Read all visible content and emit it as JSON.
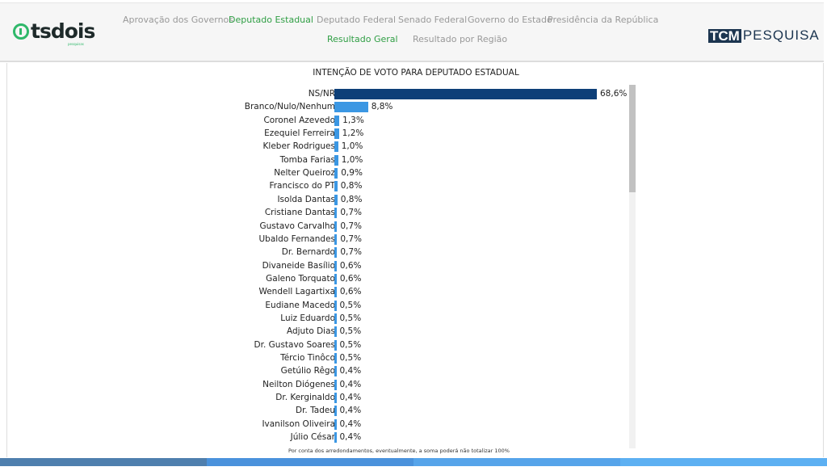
{
  "header": {
    "logo": {
      "text": "tsdois",
      "sub": "pesquisas"
    },
    "nav_top": [
      {
        "label": "Aprovação dos Governos",
        "active": false
      },
      {
        "label": "Deputado Estadual",
        "active": true
      },
      {
        "label": "Deputado Federal",
        "active": false
      },
      {
        "label": "Senado Federal",
        "active": false
      },
      {
        "label": "Governo do Estado",
        "active": false
      },
      {
        "label": "Presidência da República",
        "active": false
      }
    ],
    "nav_sub": [
      {
        "label": "Resultado Geral",
        "active": true
      },
      {
        "label": "Resultado por Região",
        "active": false
      }
    ],
    "brand": {
      "box": "TCM",
      "text": "PESQUISA"
    }
  },
  "chart_data": {
    "type": "bar",
    "orientation": "horizontal",
    "title": "INTENÇÃO DE VOTO PARA DEPUTADO ESTADUAL",
    "categories": [
      "NS/NR",
      "Branco/Nulo/Nenhum",
      "Coronel Azevedo",
      "Ezequiel Ferreira",
      "Kleber Rodrigues",
      "Tomba Farias",
      "Nelter Queiroz",
      "Francisco do PT",
      "Isolda Dantas",
      "Cristiane Dantas",
      "Gustavo Carvalho",
      "Ubaldo Fernandes",
      "Dr. Bernardo",
      "Divaneide Basílio",
      "Galeno Torquato",
      "Wendell Lagartixa",
      "Eudiane Macedo",
      "Luiz Eduardo",
      "Adjuto Dias",
      "Dr. Gustavo Soares",
      "Tércio Tinôco",
      "Getúlio Rêgo",
      "Neilton Diógenes",
      "Dr. Kerginaldo",
      "Dr. Tadeu",
      "Ivanilson Oliveira",
      "Júlio César"
    ],
    "values": [
      68.6,
      8.8,
      1.3,
      1.2,
      1.0,
      1.0,
      0.9,
      0.8,
      0.8,
      0.7,
      0.7,
      0.7,
      0.7,
      0.6,
      0.6,
      0.6,
      0.5,
      0.5,
      0.5,
      0.5,
      0.5,
      0.4,
      0.4,
      0.4,
      0.4,
      0.4,
      0.4
    ],
    "labels": [
      "68,6%",
      "8,8%",
      "1,3%",
      "1,2%",
      "1,0%",
      "1,0%",
      "0,9%",
      "0,8%",
      "0,8%",
      "0,7%",
      "0,7%",
      "0,7%",
      "0,7%",
      "0,6%",
      "0,6%",
      "0,6%",
      "0,5%",
      "0,5%",
      "0,5%",
      "0,5%",
      "0,5%",
      "0,4%",
      "0,4%",
      "0,4%",
      "0,4%",
      "0,4%",
      "0,4%"
    ],
    "colors": {
      "highlight": "#0d3f78",
      "default": "#3b97e3"
    },
    "note": "Por conta dos arredondamentos, eventualmente, a soma poderá não totalizar 100%"
  },
  "bottom_colors": [
    "#4f7fae",
    "#4a92dc",
    "#56a4ea",
    "#5db0f2"
  ]
}
